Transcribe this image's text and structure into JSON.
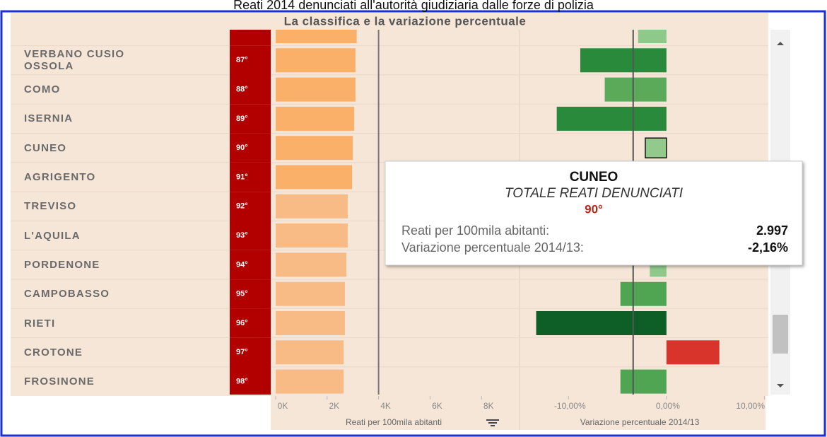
{
  "chart_data": {
    "type": "ranked-bars",
    "title": "Reati 2014 denunciati all'autorità giudiziaria dalle forze di polizia",
    "subtitle": "La classifica e la variazione percentuale",
    "categories": [
      null,
      "VERBANO CUSIO OSSOLA",
      "COMO",
      "ISERNIA",
      "CUNEO",
      "AGRIGENTO",
      "TREVISO",
      "L'AQUILA",
      "PORDENONE",
      "CAMPOBASSO",
      "RIETI",
      "CROTONE",
      "FROSINONE"
    ],
    "ranks": [
      null,
      "87°",
      "88°",
      "89°",
      "90°",
      "91°",
      "92°",
      "93°",
      "94°",
      "95°",
      "96°",
      "97°",
      "98°"
    ],
    "series": [
      {
        "name": "Reati per 100mila abitanti",
        "values": [
          3150,
          3100,
          3100,
          3050,
          2997,
          2970,
          2800,
          2800,
          2750,
          2690,
          2690,
          2640,
          2640
        ],
        "colors": [
          "#fbb06a",
          "#fbb06a",
          "#fbb06a",
          "#fbb06a",
          "#fbb06a",
          "#fbb06a",
          "#f8bb85",
          "#f8bb85",
          "#f8bb85",
          "#f8bb85",
          "#f8bb85",
          "#f8bb85",
          "#f8bb85"
        ]
      },
      {
        "name": "Variazione percentuale 2014/13",
        "axis": "x2",
        "values": [
          -2.9,
          -8.8,
          -6.3,
          -11.2,
          -2.16,
          null,
          null,
          null,
          -1.7,
          -4.7,
          -13.3,
          5.4,
          -4.7
        ],
        "colors": [
          "#8fc98a",
          "#2a8a3c",
          "#5aaa5a",
          "#2a8a3c",
          "#93c98a",
          null,
          null,
          null,
          "#8fc98a",
          "#4fa552",
          "#0e5e28",
          "#d9342c",
          "#4fa552"
        ]
      }
    ],
    "xlim": [
      0,
      9450
    ],
    "xticks": [
      {
        "value": 0,
        "label": "0K"
      },
      {
        "value": 2000,
        "label": "2K"
      },
      {
        "value": 4000,
        "label": "4K"
      },
      {
        "value": 6000,
        "label": "6K"
      },
      {
        "value": 8000,
        "label": "8K"
      }
    ],
    "x2lim": [
      -15,
      10.4
    ],
    "x2ticks": [
      {
        "value": -10,
        "label": "-10,00%"
      },
      {
        "value": 0,
        "label": "0,00%"
      },
      {
        "value": 10,
        "label": "10,00%"
      }
    ],
    "ref_line_left": 4000,
    "ref_line_right": -3.4,
    "highlight": 4,
    "tooltip": {
      "title": "CUNEO",
      "subtitle": "TOTALE REATI DENUNCIATI",
      "rank": "90°",
      "rows": [
        [
          "Reati per 100mila abitanti:",
          "2.997"
        ],
        [
          "Variazione percentuale 2014/13:",
          "-2,16%"
        ]
      ]
    }
  }
}
